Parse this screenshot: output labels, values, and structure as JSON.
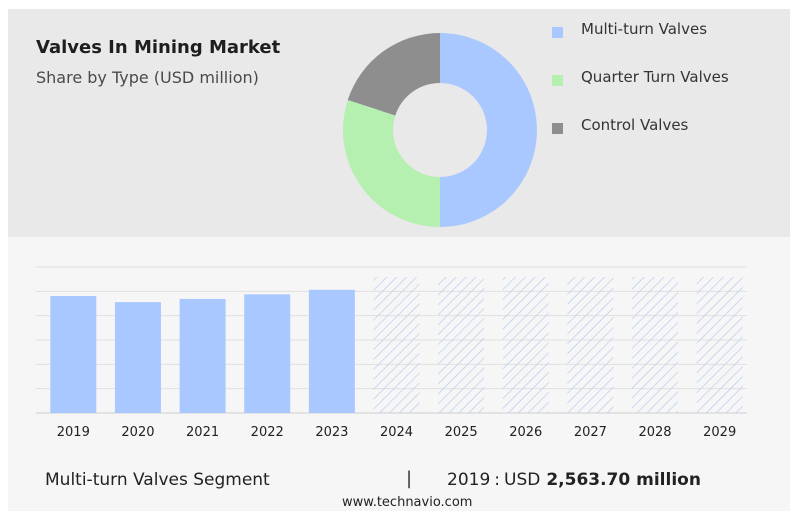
{
  "header": {
    "title": "Valves In Mining Market",
    "subtitle": "Share by Type (USD million)"
  },
  "chart_data": [
    {
      "type": "pie",
      "style": "donut",
      "series": [
        {
          "name": "Multi-turn Valves",
          "value": 50,
          "color": "#a9c8ff"
        },
        {
          "name": "Quarter Turn Valves",
          "value": 30,
          "color": "#b6f0b0"
        },
        {
          "name": "Control Valves",
          "value": 20,
          "color": "#8e8e8e"
        }
      ],
      "legend_position": "right"
    },
    {
      "type": "bar",
      "categories": [
        "2019",
        "2020",
        "2021",
        "2022",
        "2023",
        "2024",
        "2025",
        "2026",
        "2027",
        "2028",
        "2029"
      ],
      "values": [
        2563.7,
        2430,
        2500,
        2600,
        2700,
        null,
        null,
        null,
        null,
        null,
        null
      ],
      "forecast_categories": [
        "2024",
        "2025",
        "2026",
        "2027",
        "2028",
        "2029"
      ],
      "forecast_pattern": "hatched",
      "ylim": [
        0,
        3200
      ],
      "grid": true,
      "bar_color": "#a9c8ff",
      "hatch_color": "#b8cceb"
    }
  ],
  "footer": {
    "segment_label": "Multi-turn Valves Segment",
    "separator": "|",
    "year": "2019",
    "colon": ":",
    "currency": "USD",
    "value": "2,563.70 million"
  },
  "site": "www.technavio.com"
}
